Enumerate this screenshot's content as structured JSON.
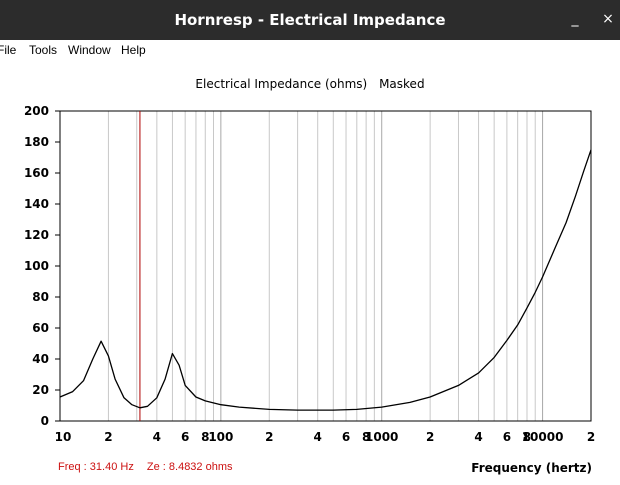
{
  "window": {
    "title": "Hornresp - Electrical Impedance",
    "minimize_glyph": "_",
    "close_glyph": "×"
  },
  "menu": [
    "File",
    "Tools",
    "Window",
    "Help"
  ],
  "chart_header": {
    "title": "Electrical Impedance (ohms)",
    "mode": "Masked"
  },
  "status": {
    "freq": "Freq : 31.40 Hz",
    "ze": "Ze : 8.4832 ohms"
  },
  "colors": {
    "titlebar": "#2c2c2c",
    "curve": "#000000",
    "cursor": "#b00000",
    "grid": "#c8c8c8",
    "status": "#cc1111"
  },
  "chart_data": {
    "type": "line",
    "xlabel": "Frequency (hertz)",
    "ylabel": "",
    "x_scale": "log",
    "xlim": [
      10,
      20000
    ],
    "ylim": [
      0,
      200
    ],
    "y_ticks": [
      0,
      20,
      40,
      60,
      80,
      100,
      120,
      140,
      160,
      180,
      200
    ],
    "x_tick_labels": [
      {
        "x": 10,
        "label": "10"
      },
      {
        "x": 20,
        "label": "2"
      },
      {
        "x": 40,
        "label": "4"
      },
      {
        "x": 60,
        "label": "6"
      },
      {
        "x": 80,
        "label": "8"
      },
      {
        "x": 100,
        "label": "100"
      },
      {
        "x": 200,
        "label": "2"
      },
      {
        "x": 400,
        "label": "4"
      },
      {
        "x": 600,
        "label": "6"
      },
      {
        "x": 800,
        "label": "8"
      },
      {
        "x": 1000,
        "label": "1000"
      },
      {
        "x": 2000,
        "label": "2"
      },
      {
        "x": 4000,
        "label": "4"
      },
      {
        "x": 6000,
        "label": "6"
      },
      {
        "x": 8000,
        "label": "8"
      },
      {
        "x": 10000,
        "label": "10000"
      },
      {
        "x": 20000,
        "label": "2"
      }
    ],
    "cursor_x": 31.4,
    "series": [
      {
        "x": [
          10,
          12,
          14,
          16,
          18,
          20,
          22,
          25,
          28,
          31.4,
          35,
          40,
          45,
          50,
          55,
          60,
          70,
          80,
          100,
          130,
          200,
          300,
          400,
          500,
          700,
          1000,
          1500,
          2000,
          3000,
          4000,
          5000,
          6000,
          7000,
          8000,
          9000,
          10000,
          12000,
          14000,
          16000,
          18000,
          20000
        ],
        "y": [
          15.5,
          19,
          26,
          40,
          51.5,
          42,
          27,
          15,
          10.5,
          8.5,
          9.5,
          15,
          27,
          43.5,
          36,
          23,
          15.5,
          13,
          10.5,
          9,
          7.5,
          7,
          7,
          7,
          7.5,
          9,
          12,
          15.5,
          23,
          31,
          41,
          52,
          62,
          73,
          83,
          93,
          112,
          128,
          145,
          161,
          175
        ]
      }
    ]
  }
}
